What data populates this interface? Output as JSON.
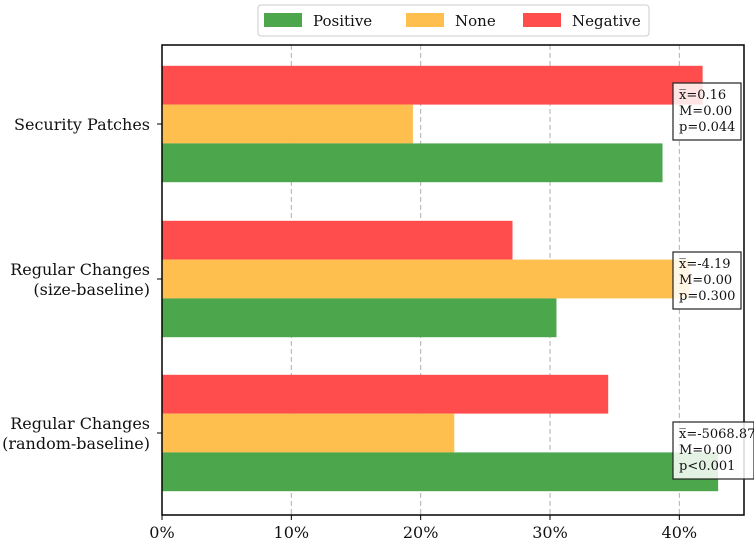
{
  "chart_data": {
    "type": "bar",
    "orientation": "horizontal",
    "categories": [
      {
        "line1": "Security Patches",
        "line2": ""
      },
      {
        "line1": "Regular Changes",
        "line2": "(size-baseline)"
      },
      {
        "line1": "Regular Changes",
        "line2": "(random-baseline)"
      }
    ],
    "series": [
      {
        "name": "Positive",
        "color": "#4ca64c",
        "values": [
          38.7,
          30.5,
          43.0
        ]
      },
      {
        "name": "None",
        "color": "#ffbf4f",
        "values": [
          19.4,
          40.8,
          22.6
        ]
      },
      {
        "name": "Negative",
        "color": "#ff4c4c",
        "values": [
          41.8,
          27.1,
          34.5
        ]
      }
    ],
    "xlim": [
      0,
      45
    ],
    "xticks": [
      0,
      10,
      20,
      30,
      40
    ],
    "xtick_labels": [
      "0%",
      "10%",
      "20%",
      "30%",
      "40%"
    ],
    "grid": "vertical dashed",
    "legend": "top-center",
    "annotations": [
      {
        "mean_label": "x̅=0.16",
        "median_label": "M=0.00",
        "p_label": "p=0.044"
      },
      {
        "mean_label": "x̅=-4.19",
        "median_label": "M=0.00",
        "p_label": "p=0.300"
      },
      {
        "mean_label": "x̅=-5068.87",
        "median_label": "M=0.00",
        "p_label": "p<0.001"
      }
    ],
    "title": "",
    "xlabel": "",
    "ylabel": ""
  }
}
